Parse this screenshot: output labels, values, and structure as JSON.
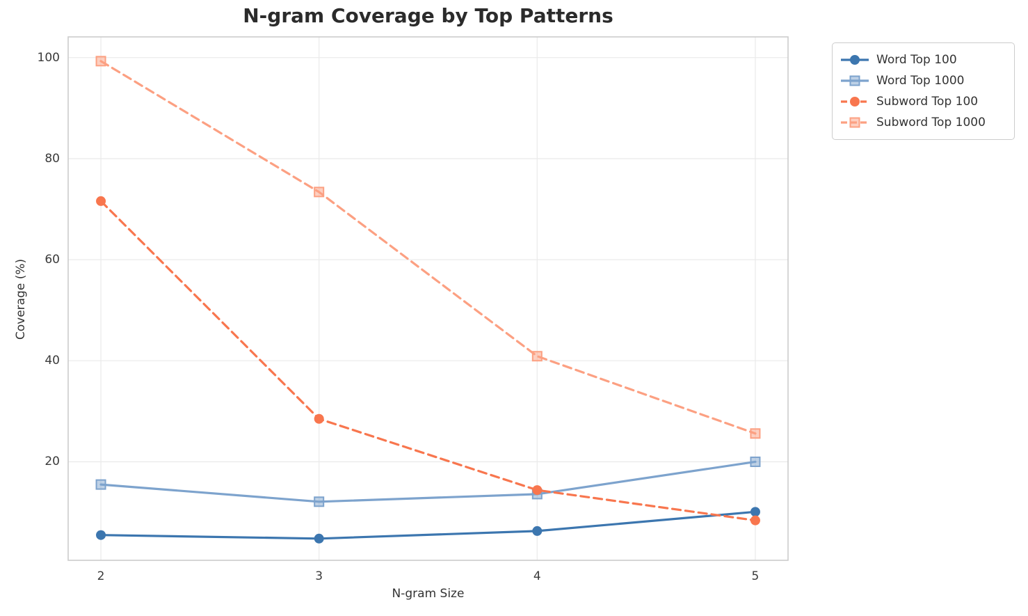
{
  "figure": {
    "background": "#ffffff",
    "spine_color": "#cccccc",
    "grid_color": "#ebebeb",
    "title_color": "#2b2b2b",
    "tick_color": "#3a3a3a"
  },
  "chart_data": {
    "type": "line",
    "title": "N-gram Coverage by Top Patterns",
    "xlabel": "N-gram Size",
    "ylabel": "Coverage (%)",
    "x": [
      2,
      3,
      4,
      5
    ],
    "x_tick_labels": [
      "2",
      "3",
      "4",
      "5"
    ],
    "y_ticks": [
      20,
      40,
      60,
      80,
      100
    ],
    "y_tick_labels": [
      "20",
      "40",
      "60",
      "80",
      "100"
    ],
    "xlim": [
      1.85,
      5.15
    ],
    "ylim": [
      0.5,
      104.1
    ],
    "grid": true,
    "legend_position": "outside-upper-right",
    "series": [
      {
        "name": "Word Top 100",
        "values": [
          5.5,
          4.8,
          6.3,
          10.1
        ],
        "color": "#3C76AF",
        "line_style": "solid",
        "marker": "circle"
      },
      {
        "name": "Word Top 1000",
        "values": [
          15.5,
          12.1,
          13.6,
          20.0
        ],
        "color": "#7DA3CD",
        "line_style": "solid",
        "marker": "square"
      },
      {
        "name": "Subword Top 100",
        "values": [
          71.6,
          28.5,
          14.4,
          8.4
        ],
        "color": "#F8764E",
        "line_style": "dashed",
        "marker": "circle"
      },
      {
        "name": "Subword Top 1000",
        "values": [
          99.3,
          73.4,
          40.9,
          25.6
        ],
        "color": "#FCA082",
        "line_style": "dashed",
        "marker": "square"
      }
    ]
  }
}
